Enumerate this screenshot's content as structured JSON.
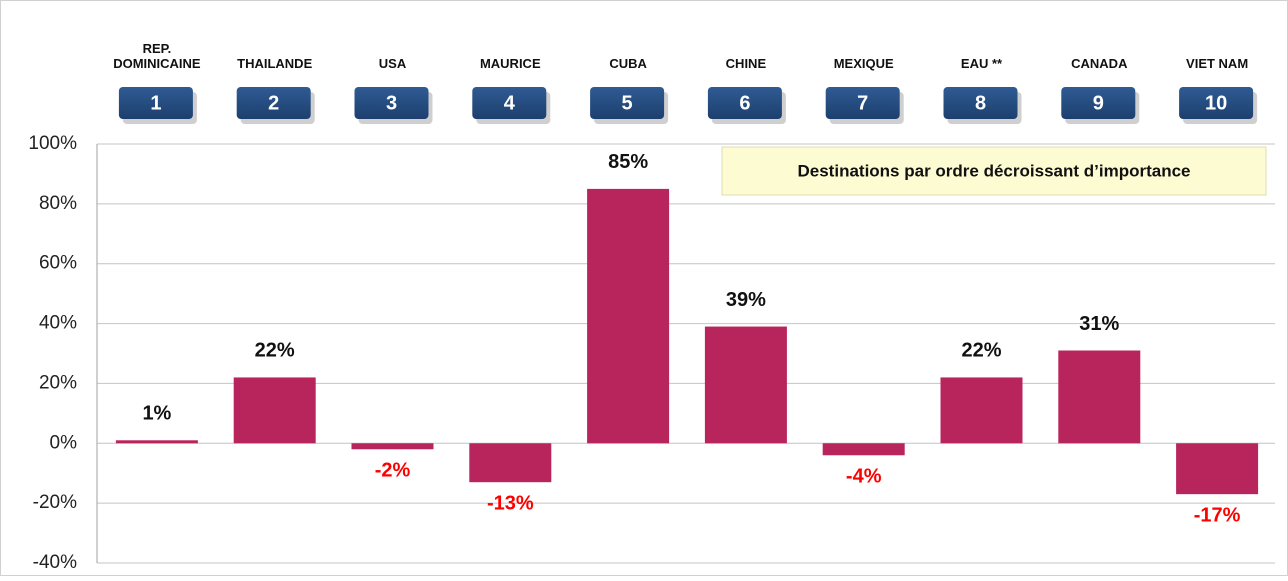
{
  "chart_data": {
    "type": "bar",
    "annotation": "Destinations par ordre décroissant d’importance",
    "categories": [
      "REP.\nDOMINICAINE",
      "THAILANDE",
      "USA",
      "MAURICE",
      "CUBA",
      "CHINE",
      "MEXIQUE",
      "EAU **",
      "CANADA",
      "VIET NAM"
    ],
    "ranks": [
      1,
      2,
      3,
      4,
      5,
      6,
      7,
      8,
      9,
      10
    ],
    "values": [
      1,
      22,
      -2,
      -13,
      85,
      39,
      -4,
      22,
      31,
      -17
    ],
    "value_labels": [
      "1%",
      "22%",
      "-2%",
      "-13%",
      "85%",
      "39%",
      "-4%",
      "22%",
      "31%",
      "-17%"
    ],
    "color": "#b8245c",
    "negative_label_color": "#ff0000",
    "ylim": [
      -40,
      100
    ],
    "yticks": [
      {
        "value": -40,
        "label": "-40%"
      },
      {
        "value": -20,
        "label": "-20%"
      },
      {
        "value": 0,
        "label": "0%"
      },
      {
        "value": 20,
        "label": "20%"
      },
      {
        "value": 40,
        "label": "40%"
      },
      {
        "value": 60,
        "label": "60%"
      },
      {
        "value": 80,
        "label": "80%"
      },
      {
        "value": 100,
        "label": "100%"
      }
    ],
    "grid": true
  }
}
